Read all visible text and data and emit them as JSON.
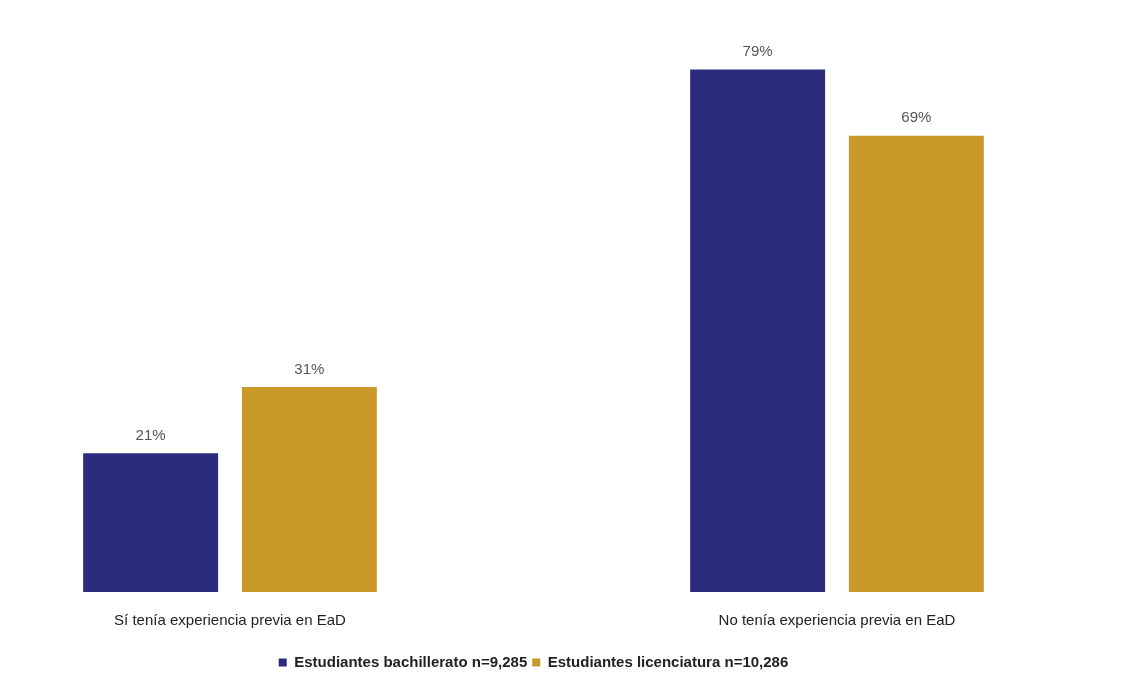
{
  "chart_data": {
    "type": "bar",
    "categories": [
      "Sí tenía experiencia previa en EaD",
      "No tenía experiencia previa en EaD"
    ],
    "series": [
      {
        "name": "Estudiantes bachillerato n=9,285",
        "color": "#2b2c7e",
        "values": [
          21,
          79
        ],
        "value_labels": [
          "21%",
          "79%"
        ]
      },
      {
        "name": "Estudiantes licenciatura n=10,286",
        "color": "#c99a2a",
        "values": [
          31,
          69
        ],
        "value_labels": [
          "31%",
          "69%"
        ]
      }
    ],
    "legend": "bottom",
    "grid": false,
    "tick_labels": "x"
  }
}
